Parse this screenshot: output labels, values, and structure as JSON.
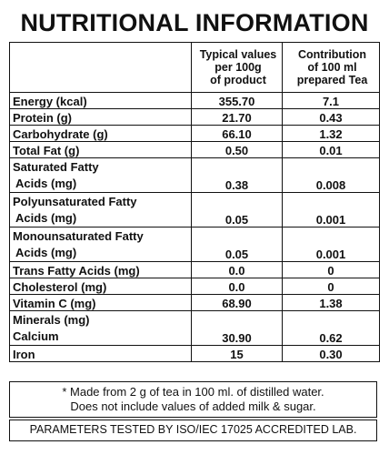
{
  "title": "NUTRITIONAL INFORMATION",
  "table": {
    "header": {
      "col1": "",
      "col2": [
        "Typical values",
        "per 100g",
        "of product"
      ],
      "col3": [
        "Contribution",
        "of 100 ml",
        "prepared Tea"
      ]
    },
    "rows": [
      {
        "label": [
          "Energy (kcal)"
        ],
        "per100g": "355.70",
        "per100ml": "7.1"
      },
      {
        "label": [
          "Protein (g)"
        ],
        "per100g": "21.70",
        "per100ml": "0.43"
      },
      {
        "label": [
          "Carbohydrate (g)"
        ],
        "per100g": "66.10",
        "per100ml": "1.32"
      },
      {
        "label": [
          "Total Fat (g)"
        ],
        "per100g": "0.50",
        "per100ml": "0.01"
      },
      {
        "label": [
          "Saturated Fatty",
          "Acids (mg)"
        ],
        "per100g": "0.38",
        "per100ml": "0.008"
      },
      {
        "label": [
          "Polyunsaturated  Fatty",
          "Acids (mg)"
        ],
        "per100g": "0.05",
        "per100ml": "0.001"
      },
      {
        "label": [
          "Monounsaturated  Fatty",
          "Acids (mg)"
        ],
        "per100g": "0.05",
        "per100ml": "0.001"
      },
      {
        "label": [
          "Trans Fatty Acids (mg)"
        ],
        "per100g": "0.0",
        "per100ml": "0"
      },
      {
        "label": [
          "Cholesterol (mg)"
        ],
        "per100g": "0.0",
        "per100ml": "0"
      },
      {
        "label": [
          "Vitamin C (mg)"
        ],
        "per100g": "68.90",
        "per100ml": "1.38"
      },
      {
        "label": [
          "Minerals (mg)",
          "Calcium"
        ],
        "per100g": "30.90",
        "per100ml": "0.62"
      },
      {
        "label": [
          "Iron"
        ],
        "per100g": "15",
        "per100ml": "0.30"
      }
    ]
  },
  "note": [
    "* Made from 2 g of tea in 100 ml. of distilled water.",
    "Does not include values of added milk & sugar."
  ],
  "lab_notice": "PARAMETERS TESTED BY ISO/IEC 17025 ACCREDITED LAB."
}
